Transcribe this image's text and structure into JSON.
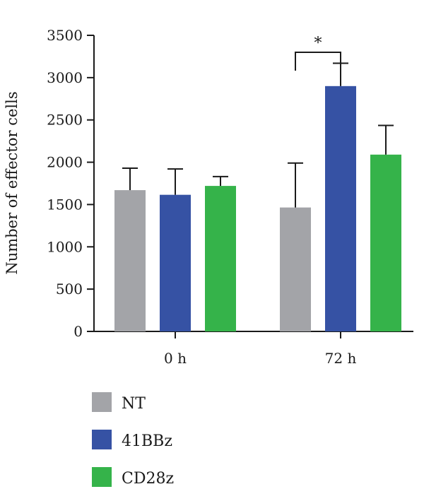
{
  "chart_data": {
    "type": "bar",
    "title": "",
    "xlabel": "",
    "ylabel": "Number of effector cells",
    "categories": [
      "0 h",
      "72 h"
    ],
    "ylim": [
      0,
      3500
    ],
    "yticks": [
      0,
      500,
      1000,
      1500,
      2000,
      2500,
      3000,
      3500
    ],
    "grid": false,
    "legend_position": "bottom-left",
    "series": [
      {
        "name": "NT",
        "color": "#a3a4a8",
        "values": [
          1670,
          1465
        ],
        "errors": [
          260,
          525
        ]
      },
      {
        "name": "41BBz",
        "color": "#3652a4",
        "values": [
          1615,
          2900
        ],
        "errors": [
          305,
          270
        ]
      },
      {
        "name": "CD28z",
        "color": "#35b34a",
        "values": [
          1720,
          2090
        ],
        "errors": [
          110,
          345
        ]
      }
    ],
    "annotations": [
      {
        "text": "*",
        "category": "72 h",
        "between_series": [
          "NT",
          "41BBz"
        ],
        "y": 3300
      }
    ]
  }
}
